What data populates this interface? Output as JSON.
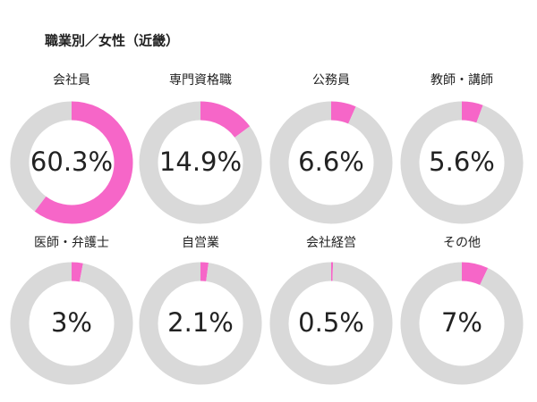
{
  "title": "職業別／女性（近畿）",
  "chart_data": [
    {
      "type": "donut",
      "title": "会社員",
      "values": [
        60.3,
        39.7
      ],
      "value_labels": [
        "60.3%",
        null
      ],
      "colors": [
        "#f666c8",
        "#d9d9d9"
      ]
    },
    {
      "type": "donut",
      "title": "専門資格職",
      "values": [
        14.9,
        85.1
      ],
      "value_labels": [
        "14.9%",
        null
      ],
      "colors": [
        "#f666c8",
        "#d9d9d9"
      ]
    },
    {
      "type": "donut",
      "title": "公務員",
      "values": [
        6.6,
        93.4
      ],
      "value_labels": [
        "6.6%",
        null
      ],
      "colors": [
        "#f666c8",
        "#d9d9d9"
      ]
    },
    {
      "type": "donut",
      "title": "教師・講師",
      "values": [
        5.6,
        94.4
      ],
      "value_labels": [
        "5.6%",
        null
      ],
      "colors": [
        "#f666c8",
        "#d9d9d9"
      ]
    },
    {
      "type": "donut",
      "title": "医師・弁護士",
      "values": [
        3,
        97
      ],
      "value_labels": [
        "3%",
        null
      ],
      "colors": [
        "#f666c8",
        "#d9d9d9"
      ]
    },
    {
      "type": "donut",
      "title": "自営業",
      "values": [
        2.1,
        97.9
      ],
      "value_labels": [
        "2.1%",
        null
      ],
      "colors": [
        "#f666c8",
        "#d9d9d9"
      ]
    },
    {
      "type": "donut",
      "title": "会社経営",
      "values": [
        0.5,
        99.5
      ],
      "value_labels": [
        "0.5%",
        null
      ],
      "colors": [
        "#f666c8",
        "#d9d9d9"
      ]
    },
    {
      "type": "donut",
      "title": "その他",
      "values": [
        7,
        93
      ],
      "value_labels": [
        "7%",
        null
      ],
      "colors": [
        "#f666c8",
        "#d9d9d9"
      ]
    }
  ]
}
